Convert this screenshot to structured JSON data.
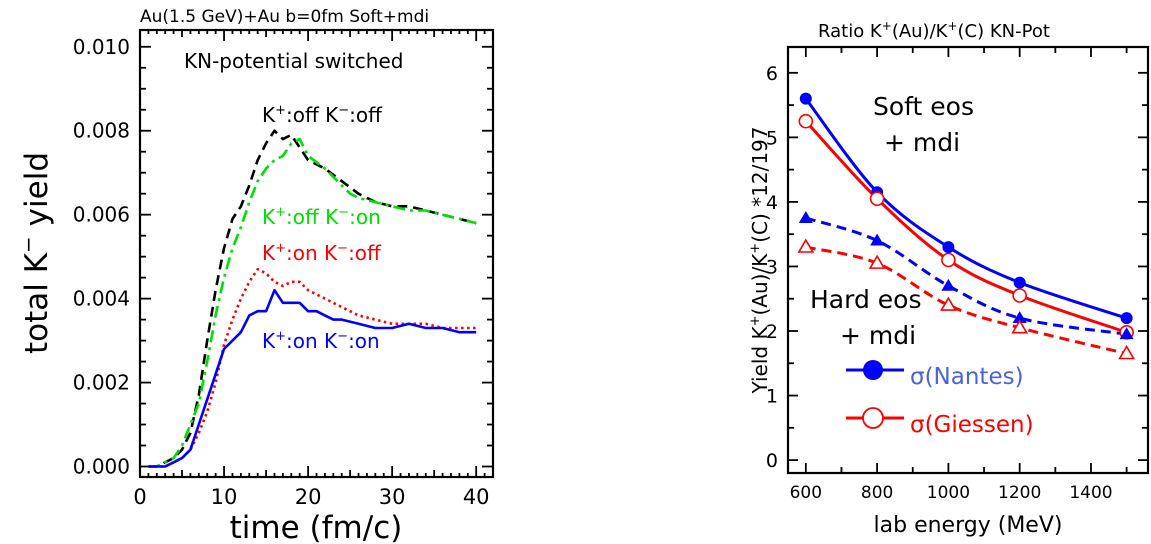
{
  "chart_data": [
    {
      "type": "line",
      "title": "Au(1.5  GeV)+Au  b=0fm  Soft+mdi",
      "xlabel": "time  (fm/c)",
      "ylabel_main": "total  K",
      "ylabel_sup": "−",
      "ylabel_tail": "  yield",
      "annotation": "KN-potential switched",
      "xlim": [
        0,
        42
      ],
      "ylim": [
        -0.00025,
        0.0104
      ],
      "xticks": [
        "0",
        "10",
        "20",
        "30",
        "40"
      ],
      "yticks": [
        "0.000",
        "0.002",
        "0.004",
        "0.006",
        "0.008",
        "0.010"
      ],
      "series": [
        {
          "label_parts": [
            "K",
            "+",
            ":off  K",
            "−",
            ":off"
          ],
          "color": "#000000",
          "dash": "10 6",
          "x": [
            1,
            2,
            3,
            4,
            5,
            6,
            7,
            8,
            9,
            10,
            11,
            12,
            13,
            14,
            15,
            16,
            17,
            18,
            19,
            20,
            22,
            24,
            26,
            28,
            30,
            32,
            34,
            36,
            38,
            40
          ],
          "y": [
            0,
            0,
            0.0001,
            0.0002,
            0.0004,
            0.0008,
            0.0017,
            0.003,
            0.0042,
            0.0052,
            0.0059,
            0.0062,
            0.0067,
            0.0073,
            0.0077,
            0.008,
            0.0078,
            0.0079,
            0.0076,
            0.0073,
            0.0071,
            0.0068,
            0.0065,
            0.0063,
            0.0062,
            0.0062,
            0.0061,
            0.006,
            0.0059,
            0.0058
          ]
        },
        {
          "label_parts": [
            "K",
            "+",
            ":off  K",
            "−",
            ":on"
          ],
          "color": "#00e000",
          "dash": "12 5 3 5",
          "x": [
            1,
            2,
            3,
            4,
            5,
            6,
            7,
            8,
            9,
            10,
            11,
            12,
            13,
            14,
            15,
            16,
            17,
            18,
            19,
            20,
            22,
            24,
            25,
            26,
            28,
            30,
            32,
            34,
            36,
            38,
            40
          ],
          "y": [
            0,
            0,
            0.0001,
            0.0002,
            0.0005,
            0.001,
            0.0015,
            0.0025,
            0.0036,
            0.0045,
            0.0052,
            0.0057,
            0.0063,
            0.0068,
            0.0071,
            0.0073,
            0.0074,
            0.0077,
            0.0078,
            0.0074,
            0.0071,
            0.0067,
            0.0065,
            0.0064,
            0.0063,
            0.0062,
            0.0061,
            0.0061,
            0.006,
            0.0059,
            0.0058
          ]
        },
        {
          "label_parts": [
            "K",
            "+",
            ":on  K",
            "−",
            ":off"
          ],
          "color": "#ff0000",
          "dash": "2.5 3.5",
          "x": [
            1,
            2,
            3,
            4,
            5,
            6,
            7,
            8,
            9,
            10,
            11,
            12,
            13,
            14,
            15,
            16,
            17,
            18,
            19,
            20,
            22,
            24,
            26,
            28,
            30,
            32,
            34,
            36,
            38,
            40
          ],
          "y": [
            0,
            0,
            0,
            0.0001,
            0.0002,
            0.0004,
            0.0008,
            0.0013,
            0.002,
            0.0029,
            0.0035,
            0.004,
            0.0044,
            0.0047,
            0.0046,
            0.0044,
            0.0043,
            0.0044,
            0.0044,
            0.0042,
            0.004,
            0.0038,
            0.0036,
            0.0035,
            0.0034,
            0.0034,
            0.0034,
            0.0033,
            0.0033,
            0.0033
          ]
        },
        {
          "label_parts": [
            "K",
            "+",
            ":on  K",
            "−",
            ":on"
          ],
          "color": "#0000ff",
          "dash": "",
          "x": [
            1,
            2,
            3,
            4,
            5,
            6,
            7,
            8,
            9,
            10,
            11,
            12,
            13,
            14,
            15,
            16,
            17,
            18,
            19,
            20,
            21,
            22,
            23,
            24,
            26,
            28,
            30,
            32,
            34,
            36,
            38,
            40
          ],
          "y": [
            0,
            0,
            0,
            0.0001,
            0.0002,
            0.0004,
            0.001,
            0.0016,
            0.0022,
            0.0028,
            0.003,
            0.0032,
            0.0036,
            0.0037,
            0.0037,
            0.0042,
            0.0039,
            0.0039,
            0.0039,
            0.0037,
            0.0037,
            0.0036,
            0.0035,
            0.0035,
            0.0034,
            0.0033,
            0.0033,
            0.0034,
            0.0033,
            0.0033,
            0.0032,
            0.0032
          ]
        }
      ]
    },
    {
      "type": "line",
      "title": "Ratio  K+(Au)/K+(C)  KN-Pot",
      "title_parts": [
        "Ratio  K",
        "+",
        "(Au)/K",
        "+",
        "(C)  KN-Pot"
      ],
      "xlabel": "lab  energy  (MeV)",
      "ylabel_parts": [
        "Yield  K",
        "+",
        "(Au)/K",
        "+",
        "(C)  *12/197"
      ],
      "xlim": [
        550,
        1560
      ],
      "ylim": [
        -0.2,
        6.4
      ],
      "xticks": [
        "600",
        "800",
        "1000",
        "1200",
        "1400"
      ],
      "yticks": [
        "0",
        "1",
        "2",
        "3",
        "4",
        "5",
        "6"
      ],
      "annotations": {
        "soft_line1": "Soft  eos",
        "soft_line2": "+  mdi",
        "hard_line1": "Hard  eos",
        "hard_line2": "+  mdi"
      },
      "legend": [
        {
          "label": "σ(Nantes)",
          "color": "#0000ff",
          "marker": "filled-circle"
        },
        {
          "label": "σ(Giessen)",
          "color": "#ff0000",
          "marker": "open-circle"
        }
      ],
      "x": [
        600,
        800,
        1000,
        1200,
        1500
      ],
      "series": [
        {
          "name": "Soft eos + mdi, σ(Nantes)",
          "color": "#0000ff",
          "marker": "filled-circle",
          "dashed": false,
          "y": [
            5.6,
            4.15,
            3.3,
            2.75,
            2.2
          ]
        },
        {
          "name": "Soft eos + mdi, σ(Giessen)",
          "color": "#ff0000",
          "marker": "open-circle",
          "dashed": false,
          "y": [
            5.25,
            4.05,
            3.1,
            2.55,
            1.98
          ]
        },
        {
          "name": "Hard eos + mdi, σ(Nantes)",
          "color": "#0000ff",
          "marker": "filled-triangle",
          "dashed": true,
          "y": [
            3.75,
            3.4,
            2.7,
            2.2,
            1.95
          ]
        },
        {
          "name": "Hard eos + mdi, σ(Giessen)",
          "color": "#ff0000",
          "marker": "open-triangle",
          "dashed": true,
          "y": [
            3.3,
            3.05,
            2.4,
            2.05,
            1.65
          ]
        }
      ]
    }
  ]
}
